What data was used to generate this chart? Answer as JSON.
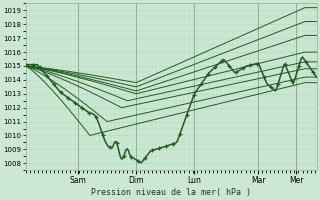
{
  "xlabel": "Pression niveau de la mer( hPa )",
  "ylim": [
    1007.5,
    1019.5
  ],
  "yticks": [
    1008,
    1009,
    1010,
    1011,
    1012,
    1013,
    1014,
    1015,
    1016,
    1017,
    1018,
    1019
  ],
  "xlim": [
    0,
    1
  ],
  "xtick_labels": [
    "Sam",
    "Dim",
    "Lun",
    "Mar",
    "Mer"
  ],
  "xtick_positions": [
    0.18,
    0.38,
    0.58,
    0.8,
    0.93
  ],
  "bg_color": "#cce8d4",
  "grid_color": "#b8d8c0",
  "line_color": "#1e5c1e",
  "fig_bg": "#cce8d4",
  "spine_color": "#99bb99"
}
